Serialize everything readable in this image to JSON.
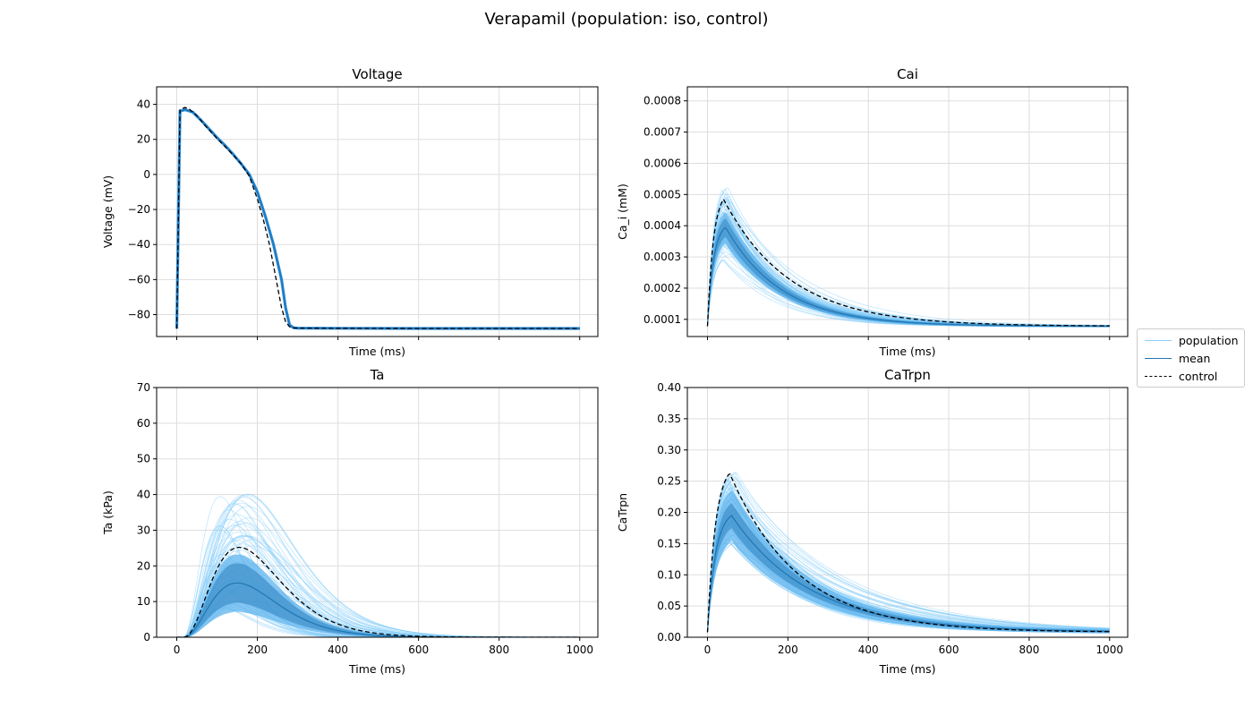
{
  "figure": {
    "title": "Verapamil (population: iso, control)"
  },
  "colors": {
    "population": "#87cefa",
    "band_outer": "#5cb3ee",
    "band_inner": "#3d8fc9",
    "mean": "#1f77b4",
    "control": "#000000",
    "grid": "#dddddd"
  },
  "legend": {
    "placement": "right-center",
    "entries": [
      {
        "label": "population",
        "style": "solid",
        "color": "#87cefa"
      },
      {
        "label": "mean",
        "style": "solid",
        "color": "#1f77b4"
      },
      {
        "label": "control",
        "style": "dashed",
        "color": "#000000"
      }
    ]
  },
  "chart_data": [
    {
      "type": "line",
      "title": "Voltage",
      "xlabel": "Time (ms)",
      "ylabel": "Voltage (mV)",
      "xlim": [
        -50,
        1045
      ],
      "ylim": [
        -92.5,
        50
      ],
      "xticks": [
        0,
        200,
        400,
        600,
        800,
        1000
      ],
      "show_xtick_labels": false,
      "yticks": [
        -80,
        -60,
        -40,
        -20,
        0,
        20,
        40
      ],
      "ytick_labels": [
        "−80",
        "−60",
        "−40",
        "−20",
        "0",
        "20",
        "40"
      ],
      "grid": true,
      "kind": "voltage",
      "series": [
        {
          "name": "mean",
          "x": [
            0,
            3,
            8,
            20,
            40,
            60,
            80,
            100,
            120,
            140,
            160,
            180,
            200,
            220,
            240,
            260,
            270,
            280,
            290,
            300,
            400,
            600,
            800,
            1000
          ],
          "y": [
            -88,
            -40,
            36,
            37,
            35.5,
            31,
            26,
            21,
            16.5,
            11.5,
            6,
            0,
            -10,
            -24,
            -40,
            -60,
            -76,
            -86,
            -87.5,
            -87.7,
            -87.8,
            -87.9,
            -87.9,
            -87.9
          ]
        },
        {
          "name": "control",
          "x": [
            0,
            3,
            8,
            20,
            30,
            50,
            70,
            100,
            130,
            160,
            180,
            200,
            215,
            230,
            245,
            260,
            270,
            280,
            290,
            300,
            400,
            600,
            800,
            1000
          ],
          "y": [
            -88,
            -40,
            37,
            38.2,
            37.5,
            33.5,
            28,
            20.5,
            13.5,
            6,
            -1,
            -14,
            -26,
            -40,
            -58,
            -76,
            -84,
            -87,
            -87.6,
            -87.7,
            -87.8,
            -87.9,
            -87.9,
            -87.9
          ]
        }
      ]
    },
    {
      "type": "line",
      "title": "Cai",
      "xlabel": "Time (ms)",
      "ylabel": "Ca_i (mM)",
      "xlim": [
        -50,
        1045
      ],
      "ylim": [
        4.5e-05,
        0.000845
      ],
      "xticks": [
        0,
        200,
        400,
        600,
        800,
        1000
      ],
      "show_xtick_labels": false,
      "yticks": [
        0.0001,
        0.0002,
        0.0003,
        0.0004,
        0.0005,
        0.0006,
        0.0007,
        0.0008
      ],
      "ytick_labels": [
        "0.0001",
        "0.0002",
        "0.0003",
        "0.0004",
        "0.0005",
        "0.0006",
        "0.0007",
        "0.0008"
      ],
      "grid": true,
      "kind": "calcium",
      "base": 7.8e-05,
      "control_peak": 0.000485,
      "control_peak_t": 40,
      "control_tau": 165,
      "mean_peak": 0.000395,
      "mean_peak_t": 45,
      "mean_tau": 140,
      "pop_peak_range": [
        0.00029,
        0.000525
      ],
      "band_outer_half": 5e-05,
      "band_inner_half": 3e-05,
      "n_population": 60,
      "rise": 15
    },
    {
      "type": "line",
      "title": "Ta",
      "xlabel": "Time (ms)",
      "ylabel": "Ta (kPa)",
      "xlim": [
        -50,
        1045
      ],
      "ylim": [
        0,
        70
      ],
      "xticks": [
        0,
        200,
        400,
        600,
        800,
        1000
      ],
      "xtick_labels": [
        "0",
        "200",
        "400",
        "600",
        "800",
        "1000"
      ],
      "show_xtick_labels": true,
      "yticks": [
        0,
        10,
        20,
        30,
        40,
        50,
        60,
        70
      ],
      "ytick_labels": [
        "0",
        "10",
        "20",
        "30",
        "40",
        "50",
        "60",
        "70"
      ],
      "grid": true,
      "kind": "tension",
      "control_peak": 25.2,
      "control_peak_t": 155,
      "mean_peak": 15.2,
      "mean_peak_t": 150,
      "pop_peak_range": [
        8,
        40.5
      ],
      "band_outer_half": 8,
      "band_inner_half": 5.5,
      "n_population": 70,
      "onset": 15
    },
    {
      "type": "line",
      "title": "CaTrpn",
      "xlabel": "Time (ms)",
      "ylabel": "CaTrpn",
      "xlim": [
        -50,
        1045
      ],
      "ylim": [
        0,
        0.4
      ],
      "xticks": [
        0,
        200,
        400,
        600,
        800,
        1000
      ],
      "xtick_labels": [
        "0",
        "200",
        "400",
        "600",
        "800",
        "1000"
      ],
      "show_xtick_labels": true,
      "yticks": [
        0,
        0.05,
        0.1,
        0.15,
        0.2,
        0.25,
        0.3,
        0.35,
        0.4
      ],
      "ytick_labels": [
        "0.00",
        "0.05",
        "0.10",
        "0.15",
        "0.20",
        "0.25",
        "0.30",
        "0.35",
        "0.40"
      ],
      "grid": true,
      "kind": "troponin",
      "base": 0.008,
      "control_peak": 0.263,
      "control_peak_t": 55,
      "control_tau": 170,
      "mean_peak": 0.195,
      "mean_peak_t": 60,
      "mean_tau": 195,
      "pop_peak_range": [
        0.15,
        0.265
      ],
      "band_outer_half": 0.04,
      "band_inner_half": 0.02,
      "n_population": 70,
      "rise": 20
    }
  ]
}
